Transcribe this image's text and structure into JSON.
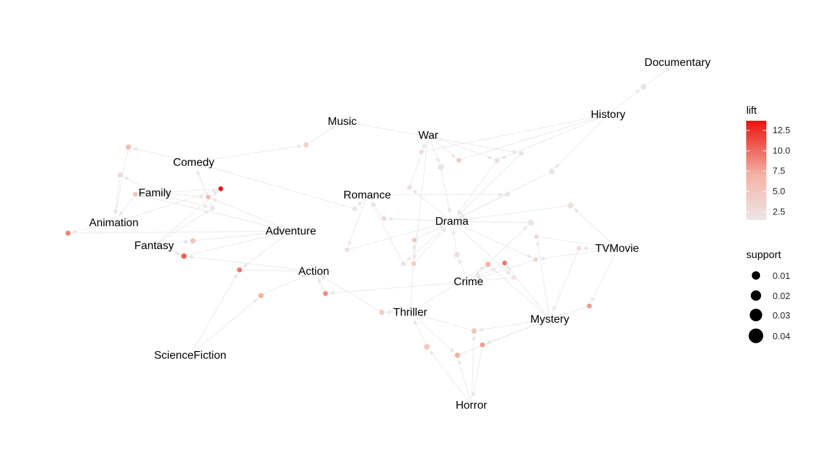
{
  "genres": [
    {
      "id": "documentary",
      "label": "Documentary"
    },
    {
      "id": "history",
      "label": "History"
    },
    {
      "id": "music",
      "label": "Music"
    },
    {
      "id": "war",
      "label": "War"
    },
    {
      "id": "comedy",
      "label": "Comedy"
    },
    {
      "id": "family",
      "label": "Family"
    },
    {
      "id": "romance",
      "label": "Romance"
    },
    {
      "id": "animation",
      "label": "Animation"
    },
    {
      "id": "drama",
      "label": "Drama"
    },
    {
      "id": "adventure",
      "label": "Adventure"
    },
    {
      "id": "fantasy",
      "label": "Fantasy"
    },
    {
      "id": "tvmovie",
      "label": "TVMovie"
    },
    {
      "id": "action",
      "label": "Action"
    },
    {
      "id": "crime",
      "label": "Crime"
    },
    {
      "id": "thriller",
      "label": "Thriller"
    },
    {
      "id": "mystery",
      "label": "Mystery"
    },
    {
      "id": "sciencefiction",
      "label": "ScienceFiction"
    },
    {
      "id": "horror",
      "label": "Horror"
    }
  ],
  "legend": {
    "lift": {
      "title": "lift",
      "ticks": [
        "12.5",
        "10.0",
        "7.5",
        "5.0",
        "2.5"
      ],
      "range": [
        1.5,
        13.7
      ],
      "low_color": "#ece6e6",
      "high_color": "#e8150e"
    },
    "support": {
      "title": "support",
      "ticks": [
        "0.01",
        "0.02",
        "0.03",
        "0.04"
      ]
    }
  },
  "edge_color": "#ebebeb",
  "rule_nodes": [
    {
      "id": "r1",
      "lift": 2.2,
      "support": 0.012,
      "from": [
        "history"
      ],
      "to": "documentary"
    },
    {
      "id": "r2",
      "lift": 3.5,
      "support": 0.012,
      "from": [
        "comedy"
      ],
      "to": "music"
    },
    {
      "id": "r3",
      "lift": 5.5,
      "support": 0.012,
      "from": [
        "comedy"
      ],
      "to": "animation"
    },
    {
      "id": "r4",
      "lift": 2.8,
      "support": 0.006,
      "from": [
        "family"
      ],
      "to": "animation"
    },
    {
      "id": "r5",
      "lift": 1.8,
      "support": 0.028,
      "from": [
        "war"
      ],
      "to": "drama"
    },
    {
      "id": "r6",
      "lift": 4.5,
      "support": 0.003,
      "from": [
        "war"
      ],
      "to": "history"
    },
    {
      "id": "r7",
      "lift": 2.0,
      "support": 0.01,
      "from": [
        "war",
        "history"
      ],
      "to": "drama"
    },
    {
      "id": "r8",
      "lift": 1.7,
      "support": 0.004,
      "from": [
        "music"
      ],
      "to": "drama"
    },
    {
      "id": "r9",
      "lift": 1.8,
      "support": 0.012,
      "from": [
        "history"
      ],
      "to": "drama"
    },
    {
      "id": "r10",
      "lift": 13.5,
      "support": 0.003,
      "from": [
        "animation",
        "fantasy"
      ],
      "to": "family"
    },
    {
      "id": "r11",
      "lift": 6.0,
      "support": 0.003,
      "from": [
        "family",
        "adventure"
      ],
      "to": "comedy"
    },
    {
      "id": "r12",
      "lift": 1.8,
      "support": 0.004,
      "from": [
        "family",
        "fantasy"
      ],
      "to": "comedy"
    },
    {
      "id": "r13",
      "lift": 1.6,
      "support": 0.003,
      "from": [
        "romance"
      ],
      "to": "drama"
    },
    {
      "id": "r14",
      "lift": 1.9,
      "support": 0.025,
      "from": [
        "tvmovie"
      ],
      "to": "drama"
    },
    {
      "id": "r15",
      "lift": 1.9,
      "support": 0.025,
      "from": [
        "crime"
      ],
      "to": "drama"
    },
    {
      "id": "r16",
      "lift": 9.0,
      "support": 0.006,
      "from": [
        "animation"
      ],
      "to": "adventure"
    },
    {
      "id": "r17",
      "lift": 5.0,
      "support": 0.01,
      "from": [
        "fantasy"
      ],
      "to": "adventure"
    },
    {
      "id": "r18",
      "lift": 10.5,
      "support": 0.01,
      "from": [
        "fantasy",
        "action"
      ],
      "to": "adventure"
    },
    {
      "id": "r19",
      "lift": 2.5,
      "support": 0.003,
      "from": [
        "mystery"
      ],
      "to": "tvmovie"
    },
    {
      "id": "r20",
      "lift": 9.5,
      "support": 0.006,
      "from": [
        "adventure",
        "sciencefiction"
      ],
      "to": "action"
    },
    {
      "id": "r21",
      "lift": 7.0,
      "support": 0.01,
      "from": [
        "sciencefiction"
      ],
      "to": "action"
    },
    {
      "id": "r22",
      "lift": 8.5,
      "support": 0.006,
      "from": [
        "crime"
      ],
      "to": "action"
    },
    {
      "id": "r23",
      "lift": 4.0,
      "support": 0.012,
      "from": [
        "thriller"
      ],
      "to": "action"
    },
    {
      "id": "r24",
      "lift": 1.9,
      "support": 0.015,
      "from": [
        "crime"
      ],
      "to": "drama"
    },
    {
      "id": "r25",
      "lift": 1.7,
      "support": 0.004,
      "from": [
        "romance"
      ],
      "to": "comedy"
    },
    {
      "id": "r26",
      "lift": 2.8,
      "support": 0.004,
      "from": [
        "drama"
      ],
      "to": "romance"
    },
    {
      "id": "r27",
      "lift": 4.5,
      "support": 0.004,
      "from": [
        "thriller"
      ],
      "to": "drama"
    },
    {
      "id": "r28",
      "lift": 6.5,
      "support": 0.012,
      "from": [
        "mystery",
        "thriller"
      ],
      "to": "crime"
    },
    {
      "id": "r29",
      "lift": 9.5,
      "support": 0.003,
      "from": [
        "mystery"
      ],
      "to": "crime"
    },
    {
      "id": "r30",
      "lift": 3.0,
      "support": 0.004,
      "from": [
        "tvmovie",
        "drama"
      ],
      "to": "crime"
    },
    {
      "id": "r31",
      "lift": 2.0,
      "support": 0.007,
      "from": [
        "tvmovie"
      ],
      "to": "mystery"
    },
    {
      "id": "r32",
      "lift": 8.0,
      "support": 0.004,
      "from": [
        "tvmovie"
      ],
      "to": "mystery"
    },
    {
      "id": "r33",
      "lift": 5.0,
      "support": 0.012,
      "from": [
        "horror",
        "mystery"
      ],
      "to": "thriller"
    },
    {
      "id": "r34",
      "lift": 4.5,
      "support": 0.023,
      "from": [
        "horror"
      ],
      "to": "thriller"
    },
    {
      "id": "r35",
      "lift": 7.0,
      "support": 0.01,
      "from": [
        "horror",
        "thriller"
      ],
      "to": "mystery"
    },
    {
      "id": "r36",
      "lift": 8.0,
      "support": 0.004,
      "from": [
        "mystery"
      ],
      "to": "horror"
    },
    {
      "id": "r37",
      "lift": 2.0,
      "support": 0.006,
      "from": [
        "drama"
      ],
      "to": "romance"
    },
    {
      "id": "r38",
      "lift": 2.0,
      "support": 0.003,
      "from": [
        "war"
      ],
      "to": "history"
    },
    {
      "id": "r39",
      "lift": 4.0,
      "support": 0.004,
      "from": [
        "war"
      ],
      "to": "drama"
    },
    {
      "id": "r40",
      "lift": 5.0,
      "support": 0.004,
      "from": [
        "adventure",
        "family"
      ],
      "to": "animation"
    },
    {
      "id": "r41",
      "lift": 2.0,
      "support": 0.003,
      "from": [
        "romance"
      ],
      "to": "drama"
    },
    {
      "id": "r42",
      "lift": 2.0,
      "support": 0.003,
      "from": [
        "drama"
      ],
      "to": "crime"
    },
    {
      "id": "r43",
      "lift": 2.0,
      "support": 0.004,
      "from": [
        "drama"
      ],
      "to": "war"
    }
  ]
}
